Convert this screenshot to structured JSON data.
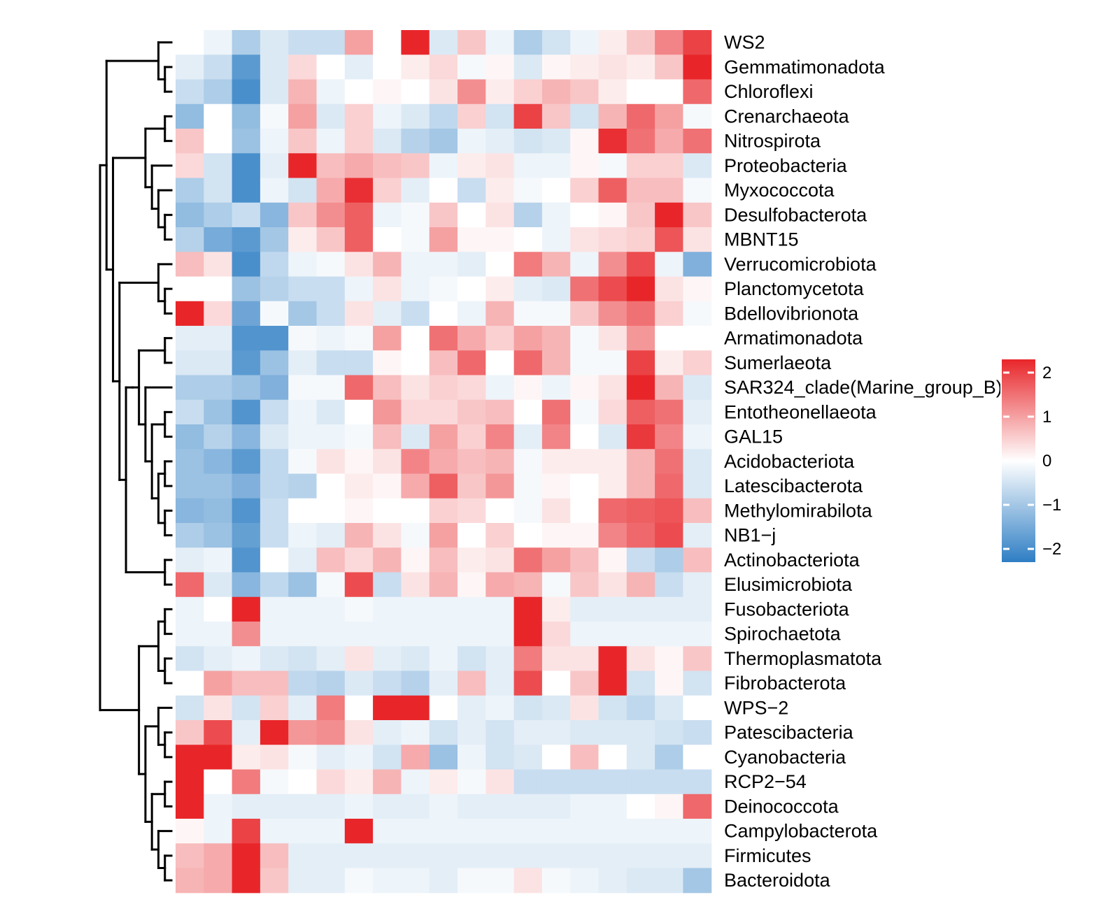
{
  "chart_data": {
    "type": "heatmap",
    "title": "",
    "xlabel": "",
    "ylabel": "",
    "column_labels": [],
    "row_labels": [
      "WS2",
      "Gemmatimonadota",
      "Chloroflexi",
      "Crenarchaeota",
      "Nitrospirota",
      "Proteobacteria",
      "Myxococcota",
      "Desulfobacterota",
      "MBNT15",
      "Verrucomicrobiota",
      "Planctomycetota",
      "Bdellovibrionota",
      "Armatimonadota",
      "Sumerlaeota",
      "SAR324_clade(Marine_group_B)",
      "Entotheonellaeota",
      "GAL15",
      "Acidobacteriota",
      "Latescibacterota",
      "Methylomirabilota",
      "NB1−j",
      "Actinobacteriota",
      "Elusimicrobiota",
      "Fusobacteriota",
      "Spirochaetota",
      "Thermoplasmatota",
      "Fibrobacterota",
      "WPS−2",
      "Patescibacteria",
      "Cyanobacteria",
      "RCP2−54",
      "Deinococcota",
      "Campylobacterota",
      "Firmicutes",
      "Bacteroidota"
    ],
    "color_scale": {
      "min": -2.3,
      "max": 2.3,
      "low_color": "#2E7EC4",
      "mid_color": "#FFFFFF",
      "high_color": "#E8262A",
      "legend_ticks": [
        2,
        1,
        0,
        -1,
        -2
      ],
      "legend_tick_labels": [
        "2",
        "1",
        "0",
        "−1",
        "−2"
      ]
    },
    "dendrogram": "row",
    "values": [
      [
        0.0,
        -0.2,
        -0.9,
        -0.4,
        -0.6,
        -0.6,
        1.0,
        0.0,
        2.3,
        -0.4,
        0.6,
        -0.2,
        -0.9,
        -0.5,
        -0.2,
        0.2,
        0.6,
        1.3,
        2.0
      ],
      [
        -0.3,
        -0.6,
        -1.8,
        -0.4,
        0.4,
        0.0,
        -0.3,
        0.0,
        0.2,
        0.4,
        -0.1,
        0.1,
        -0.4,
        0.1,
        0.2,
        0.3,
        0.2,
        0.6,
        2.3
      ],
      [
        -0.6,
        -0.9,
        -2.0,
        -0.4,
        0.8,
        -0.2,
        0.0,
        0.1,
        0.0,
        0.3,
        1.2,
        0.2,
        0.5,
        0.8,
        0.6,
        0.2,
        0.0,
        0.0,
        1.6
      ],
      [
        -1.2,
        0.0,
        -1.2,
        -0.1,
        1.0,
        -0.4,
        0.5,
        -0.2,
        -0.4,
        -0.7,
        0.5,
        -0.5,
        2.0,
        0.6,
        -0.5,
        0.8,
        1.6,
        1.0,
        -0.1
      ],
      [
        0.6,
        0.0,
        -1.1,
        -0.2,
        0.6,
        -0.2,
        0.5,
        -0.4,
        -0.8,
        -1.0,
        -0.2,
        -0.3,
        -0.5,
        -0.4,
        0.1,
        2.2,
        1.5,
        0.9,
        1.5
      ],
      [
        0.4,
        -0.5,
        -2.0,
        -0.3,
        2.3,
        0.7,
        0.9,
        0.7,
        0.6,
        -0.2,
        0.2,
        0.3,
        -0.2,
        -0.2,
        0.1,
        -0.1,
        0.5,
        0.5,
        -0.4
      ],
      [
        -0.9,
        -0.5,
        -2.0,
        -0.2,
        -0.5,
        0.9,
        2.2,
        0.5,
        -0.3,
        0.0,
        -0.6,
        0.2,
        -0.1,
        0.0,
        0.5,
        1.7,
        0.7,
        0.7,
        -0.1
      ],
      [
        -1.2,
        -0.9,
        -0.6,
        -1.3,
        0.6,
        1.2,
        1.7,
        -0.2,
        -0.1,
        0.6,
        0.0,
        0.3,
        -0.8,
        -0.2,
        0.0,
        0.1,
        0.6,
        2.3,
        0.6
      ],
      [
        -0.8,
        -1.5,
        -1.8,
        -1.0,
        0.2,
        0.6,
        1.7,
        0.0,
        -0.1,
        1.0,
        0.1,
        0.1,
        0.0,
        -0.2,
        0.3,
        0.4,
        0.5,
        1.8,
        0.3
      ],
      [
        0.7,
        0.3,
        -2.0,
        -0.7,
        -0.2,
        -0.1,
        0.3,
        0.8,
        -0.2,
        -0.2,
        -0.3,
        0.0,
        1.4,
        0.8,
        -0.2,
        1.2,
        1.9,
        -0.2,
        -1.4
      ],
      [
        0.0,
        0.0,
        -1.1,
        -0.8,
        -0.6,
        -0.6,
        -0.2,
        0.3,
        -0.2,
        -0.1,
        0.0,
        0.2,
        -0.3,
        -0.4,
        1.5,
        1.9,
        2.3,
        0.3,
        0.1
      ],
      [
        2.3,
        0.4,
        -1.6,
        -0.1,
        -1.0,
        -0.6,
        0.3,
        -0.3,
        -0.6,
        0.0,
        -0.2,
        0.8,
        -0.1,
        -0.1,
        0.6,
        1.2,
        1.5,
        0.5,
        -0.1
      ],
      [
        -0.3,
        -0.3,
        -1.9,
        -1.9,
        -0.1,
        -0.2,
        -0.1,
        1.0,
        0.0,
        1.5,
        0.9,
        0.5,
        1.0,
        0.8,
        -0.1,
        0.3,
        1.1,
        0.0,
        0.0
      ],
      [
        -0.4,
        -0.4,
        -1.8,
        -1.1,
        -0.3,
        -0.6,
        -0.6,
        0.1,
        0.0,
        0.7,
        1.6,
        0.0,
        1.6,
        0.8,
        -0.1,
        -0.1,
        2.0,
        0.2,
        0.5
      ],
      [
        -0.9,
        -0.9,
        -1.1,
        -1.4,
        -0.1,
        -0.1,
        1.6,
        0.7,
        0.3,
        0.5,
        0.4,
        -0.2,
        0.1,
        -0.2,
        0.1,
        0.3,
        2.3,
        0.8,
        -0.4
      ],
      [
        -0.6,
        -1.1,
        -1.9,
        -0.6,
        -0.2,
        -0.4,
        0.0,
        1.1,
        0.4,
        0.4,
        0.6,
        0.7,
        0.0,
        1.5,
        -0.1,
        0.4,
        1.7,
        1.5,
        -0.3
      ],
      [
        -1.2,
        -0.8,
        -1.3,
        -0.4,
        -0.2,
        -0.2,
        -0.1,
        0.7,
        -0.4,
        1.0,
        0.5,
        1.3,
        -0.3,
        1.3,
        0.0,
        -0.4,
        2.1,
        1.3,
        -0.2
      ],
      [
        -1.1,
        -1.3,
        -1.8,
        -0.7,
        -0.1,
        0.3,
        0.1,
        0.3,
        1.3,
        0.9,
        0.7,
        0.8,
        -0.1,
        0.2,
        0.2,
        0.2,
        0.8,
        1.5,
        -0.4
      ],
      [
        -1.1,
        -1.1,
        -1.4,
        -0.7,
        -0.8,
        0.0,
        0.2,
        0.1,
        0.9,
        1.7,
        0.6,
        1.1,
        -0.1,
        0.1,
        0.0,
        0.2,
        0.8,
        1.6,
        -0.4
      ],
      [
        -1.3,
        -1.2,
        -1.9,
        -0.6,
        0.0,
        0.0,
        0.1,
        0.0,
        0.0,
        0.5,
        0.4,
        0.0,
        -0.1,
        0.3,
        0.0,
        1.6,
        1.7,
        1.8,
        0.7
      ],
      [
        -0.9,
        -1.1,
        -1.7,
        -0.6,
        -0.2,
        -0.3,
        0.8,
        0.3,
        -0.1,
        1.0,
        0.0,
        0.5,
        0.0,
        0.1,
        0.1,
        1.3,
        1.6,
        1.9,
        -0.3
      ],
      [
        -0.3,
        -0.2,
        -1.9,
        0.0,
        -0.3,
        0.7,
        0.4,
        0.8,
        0.1,
        0.7,
        0.2,
        0.3,
        1.5,
        1.0,
        0.7,
        0.1,
        -0.6,
        -0.9,
        0.7
      ],
      [
        1.6,
        -0.4,
        -1.3,
        -0.7,
        -1.1,
        -0.1,
        1.9,
        -0.6,
        0.3,
        0.8,
        0.1,
        0.9,
        0.8,
        -0.1,
        0.6,
        0.3,
        0.8,
        -0.6,
        -0.3
      ],
      [
        -0.2,
        0.0,
        2.3,
        -0.2,
        -0.2,
        -0.2,
        -0.1,
        -0.2,
        -0.2,
        -0.2,
        -0.2,
        -0.2,
        2.3,
        0.2,
        -0.3,
        -0.3,
        -0.3,
        -0.3,
        -0.3
      ],
      [
        -0.2,
        -0.2,
        1.2,
        -0.2,
        -0.2,
        -0.2,
        -0.2,
        -0.2,
        -0.2,
        -0.2,
        -0.2,
        -0.2,
        2.3,
        0.4,
        -0.2,
        -0.2,
        -0.2,
        -0.2,
        -0.2
      ],
      [
        -0.5,
        -0.3,
        -0.2,
        -0.4,
        -0.5,
        -0.3,
        0.3,
        -0.3,
        -0.4,
        -0.2,
        -0.5,
        -0.3,
        1.4,
        0.3,
        0.3,
        2.3,
        0.3,
        0.1,
        0.6
      ],
      [
        0.0,
        1.0,
        0.7,
        0.7,
        -0.7,
        -0.8,
        -0.4,
        -0.6,
        -0.8,
        -0.3,
        0.7,
        -0.3,
        1.9,
        0.0,
        0.6,
        2.3,
        -0.5,
        0.1,
        -0.5
      ],
      [
        -0.5,
        0.3,
        -0.5,
        0.5,
        -0.3,
        1.4,
        0.0,
        2.3,
        2.3,
        0.0,
        -0.3,
        -0.2,
        -0.5,
        -0.4,
        0.3,
        -0.5,
        -0.7,
        -0.4,
        0.0
      ],
      [
        0.6,
        1.9,
        -0.3,
        2.3,
        1.1,
        1.2,
        0.3,
        -0.3,
        -0.2,
        -0.5,
        -0.3,
        -0.5,
        -0.3,
        -0.3,
        -0.4,
        -0.4,
        -0.4,
        -0.5,
        -0.6
      ],
      [
        2.3,
        2.3,
        0.2,
        0.3,
        -0.1,
        -0.3,
        -0.2,
        -0.5,
        0.9,
        -1.1,
        -0.2,
        -0.5,
        -0.4,
        0.0,
        0.7,
        0.0,
        -0.4,
        -0.9,
        0.0
      ],
      [
        2.3,
        0.0,
        1.4,
        -0.1,
        0.0,
        0.4,
        0.2,
        0.8,
        -0.2,
        0.2,
        -0.1,
        0.3,
        -0.6,
        -0.6,
        -0.6,
        -0.6,
        -0.6,
        -0.6,
        -0.6
      ],
      [
        2.3,
        -0.2,
        -0.3,
        -0.3,
        -0.3,
        -0.3,
        -0.2,
        -0.3,
        -0.3,
        -0.2,
        -0.3,
        -0.3,
        -0.3,
        -0.3,
        -0.2,
        -0.2,
        0.0,
        0.1,
        1.6
      ],
      [
        0.1,
        -0.2,
        2.0,
        -0.2,
        -0.2,
        -0.2,
        2.3,
        -0.2,
        -0.2,
        -0.2,
        -0.2,
        -0.2,
        -0.2,
        -0.2,
        -0.2,
        -0.2,
        -0.2,
        -0.2,
        -0.2
      ],
      [
        0.7,
        0.9,
        2.3,
        0.7,
        -0.3,
        -0.3,
        -0.3,
        -0.3,
        -0.3,
        -0.3,
        -0.3,
        -0.3,
        -0.3,
        -0.3,
        -0.3,
        -0.3,
        -0.3,
        -0.3,
        -0.3
      ],
      [
        0.8,
        0.9,
        2.3,
        0.6,
        -0.3,
        -0.3,
        -0.1,
        -0.2,
        -0.2,
        -0.3,
        -0.1,
        -0.1,
        0.3,
        -0.1,
        -0.2,
        -0.3,
        -0.4,
        -0.4,
        -1.0
      ]
    ],
    "row_tree": {
      "children": [
        {
          "children": [
            {
              "children": [
                {
                  "leaf": 0
                },
                {
                  "children": [
                    {
                      "leaf": 1
                    },
                    {
                      "leaf": 2
                    }
                  ]
                }
              ]
            },
            {
              "children": [
                {
                  "children": [
                    {
                      "children": [
                        {
                          "leaf": 3
                        },
                        {
                          "leaf": 4
                        }
                      ]
                    },
                    {
                      "children": [
                        {
                          "leaf": 5
                        },
                        {
                          "children": [
                            {
                              "leaf": 6
                            },
                            {
                              "children": [
                                {
                                  "leaf": 7
                                },
                                {
                                  "leaf": 8
                                }
                              ]
                            }
                          ]
                        }
                      ]
                    }
                  ]
                },
                {
                  "children": [
                    {
                      "children": [
                        {
                          "leaf": 9
                        },
                        {
                          "children": [
                            {
                              "leaf": 10
                            },
                            {
                              "leaf": 11
                            }
                          ]
                        }
                      ]
                    },
                    {
                      "children": [
                        {
                          "children": [
                            {
                              "children": [
                                {
                                  "children": [
                                    {
                                      "leaf": 12
                                    },
                                    {
                                      "leaf": 13
                                    }
                                  ]
                                },
                                {
                                  "children": [
                                    {
                                      "leaf": 14
                                    },
                                    {
                                      "children": [
                                        {
                                          "children": [
                                            {
                                              "leaf": 15
                                            },
                                            {
                                              "leaf": 16
                                            }
                                          ]
                                        },
                                        {
                                          "children": [
                                            {
                                              "children": [
                                                {
                                                  "leaf": 17
                                                },
                                                {
                                                  "leaf": 18
                                                }
                                              ]
                                            },
                                            {
                                              "children": [
                                                {
                                                  "leaf": 19
                                                },
                                                {
                                                  "leaf": 20
                                                }
                                              ]
                                            }
                                          ]
                                        }
                                      ]
                                    }
                                  ]
                                }
                              ]
                            }
                          ]
                        },
                        {
                          "children": [
                            {
                              "leaf": 21
                            },
                            {
                              "leaf": 22
                            }
                          ]
                        }
                      ]
                    }
                  ]
                }
              ]
            }
          ]
        },
        {
          "children": [
            {
              "children": [
                {
                  "children": [
                    {
                      "leaf": 23
                    },
                    {
                      "leaf": 24
                    }
                  ]
                },
                {
                  "children": [
                    {
                      "leaf": 25
                    },
                    {
                      "leaf": 26
                    }
                  ]
                }
              ]
            },
            {
              "children": [
                {
                  "children": [
                    {
                      "leaf": 27
                    },
                    {
                      "children": [
                        {
                          "leaf": 28
                        },
                        {
                          "leaf": 29
                        }
                      ]
                    }
                  ]
                },
                {
                  "children": [
                    {
                      "children": [
                        {
                          "leaf": 30
                        },
                        {
                          "leaf": 31
                        }
                      ]
                    },
                    {
                      "children": [
                        {
                          "leaf": 32
                        },
                        {
                          "children": [
                            {
                              "leaf": 33
                            },
                            {
                              "leaf": 34
                            }
                          ]
                        }
                      ]
                    }
                  ]
                }
              ]
            }
          ]
        }
      ]
    }
  }
}
